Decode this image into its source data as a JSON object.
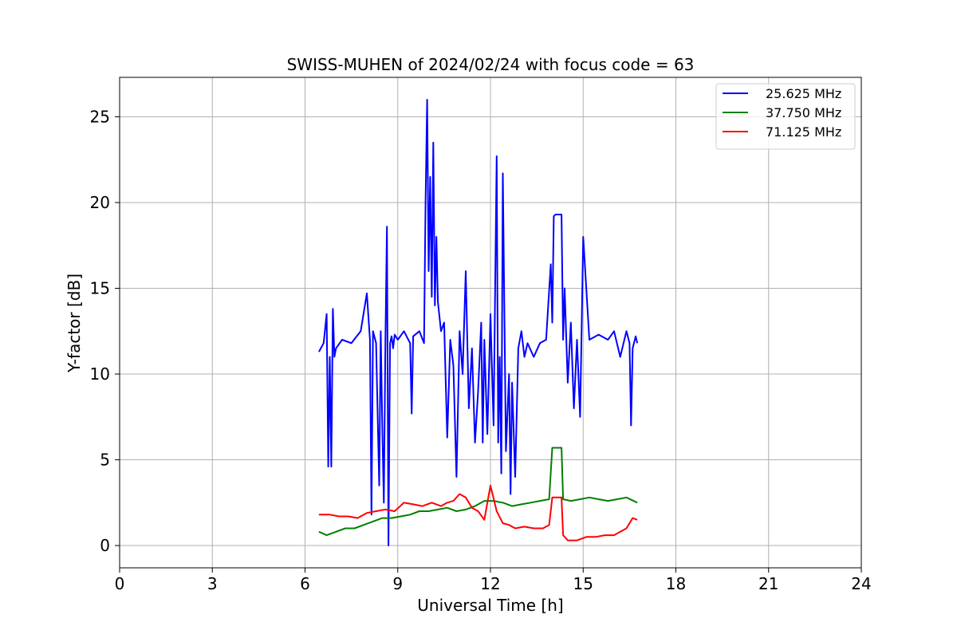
{
  "chart_data": {
    "type": "line",
    "title": "SWISS-MUHEN of 2024/02/24 with focus code = 63",
    "xlabel": "Universal Time [h]",
    "ylabel": "Y-factor [dB]",
    "xlim": [
      0,
      24
    ],
    "ylim": [
      -1.3,
      27.3
    ],
    "xticks": [
      0,
      3,
      6,
      9,
      12,
      15,
      18,
      21,
      24
    ],
    "yticks": [
      0,
      5,
      10,
      15,
      20,
      25
    ],
    "grid": true,
    "legend_position": "top-right",
    "series": [
      {
        "name": "25.625 MHz",
        "color": "#0000ff",
        "x": [
          6.45,
          6.6,
          6.7,
          6.75,
          6.8,
          6.85,
          6.9,
          6.95,
          7.0,
          7.2,
          7.5,
          7.8,
          8.0,
          8.1,
          8.15,
          8.2,
          8.3,
          8.4,
          8.45,
          8.5,
          8.55,
          8.6,
          8.65,
          8.7,
          8.75,
          8.8,
          8.85,
          8.9,
          9.0,
          9.2,
          9.4,
          9.45,
          9.5,
          9.7,
          9.85,
          9.9,
          9.95,
          10.0,
          10.05,
          10.1,
          10.15,
          10.2,
          10.25,
          10.3,
          10.4,
          10.5,
          10.6,
          10.7,
          10.8,
          10.9,
          11.0,
          11.1,
          11.2,
          11.3,
          11.4,
          11.5,
          11.6,
          11.7,
          11.75,
          11.8,
          11.9,
          12.0,
          12.1,
          12.2,
          12.25,
          12.3,
          12.35,
          12.4,
          12.5,
          12.6,
          12.65,
          12.7,
          12.8,
          12.9,
          13.0,
          13.1,
          13.2,
          13.4,
          13.6,
          13.8,
          13.95,
          14.0,
          14.05,
          14.1,
          14.2,
          14.3,
          14.35,
          14.4,
          14.5,
          14.6,
          14.7,
          14.8,
          14.9,
          15.0,
          15.2,
          15.5,
          15.8,
          16.0,
          16.2,
          16.4,
          16.5,
          16.55,
          16.6,
          16.7,
          16.75
        ],
        "values": [
          11.3,
          11.8,
          13.5,
          4.6,
          11.0,
          4.6,
          13.8,
          11.0,
          11.5,
          12.0,
          11.8,
          12.5,
          14.7,
          12.0,
          1.8,
          12.5,
          11.8,
          3.5,
          12.5,
          6.8,
          2.5,
          12.0,
          18.6,
          0.0,
          11.8,
          12.2,
          11.5,
          12.3,
          12.0,
          12.5,
          11.8,
          7.7,
          12.2,
          12.5,
          11.8,
          20.0,
          26.0,
          16.0,
          21.5,
          14.5,
          23.5,
          14.0,
          18.0,
          14.2,
          12.5,
          13.0,
          6.3,
          12.0,
          10.5,
          4.0,
          12.5,
          10.0,
          16.0,
          8.0,
          11.5,
          6.0,
          9.0,
          13.0,
          6.0,
          12.0,
          6.5,
          13.5,
          7.0,
          22.7,
          6.0,
          11.0,
          4.2,
          21.7,
          5.5,
          10.0,
          3.0,
          9.5,
          4.0,
          11.5,
          12.5,
          11.0,
          11.8,
          11.0,
          11.8,
          12.0,
          16.4,
          13.0,
          19.2,
          19.3,
          19.3,
          19.3,
          12.0,
          15.0,
          9.5,
          13.0,
          8.0,
          12.0,
          7.5,
          18.0,
          12.0,
          12.3,
          12.0,
          12.5,
          11.0,
          12.5,
          11.8,
          7.0,
          11.5,
          12.2,
          11.8
        ]
      },
      {
        "name": "37.750 MHz",
        "color": "#008000",
        "x": [
          6.45,
          6.7,
          7.0,
          7.3,
          7.6,
          7.9,
          8.2,
          8.5,
          8.8,
          9.1,
          9.4,
          9.7,
          10.0,
          10.3,
          10.6,
          10.9,
          11.2,
          11.5,
          11.8,
          12.1,
          12.4,
          12.7,
          13.0,
          13.3,
          13.6,
          13.9,
          14.0,
          14.05,
          14.3,
          14.35,
          14.6,
          14.9,
          15.2,
          15.5,
          15.8,
          16.1,
          16.4,
          16.75
        ],
        "values": [
          0.8,
          0.6,
          0.8,
          1.0,
          1.0,
          1.2,
          1.4,
          1.6,
          1.6,
          1.7,
          1.8,
          2.0,
          2.0,
          2.1,
          2.2,
          2.0,
          2.1,
          2.3,
          2.6,
          2.6,
          2.5,
          2.3,
          2.4,
          2.5,
          2.6,
          2.7,
          5.7,
          5.7,
          5.7,
          2.7,
          2.6,
          2.7,
          2.8,
          2.7,
          2.6,
          2.7,
          2.8,
          2.5
        ]
      },
      {
        "name": "71.125 MHz",
        "color": "#ff0000",
        "x": [
          6.45,
          6.8,
          7.1,
          7.4,
          7.7,
          8.0,
          8.3,
          8.6,
          8.9,
          9.2,
          9.5,
          9.8,
          10.1,
          10.4,
          10.6,
          10.8,
          11.0,
          11.2,
          11.4,
          11.6,
          11.8,
          12.0,
          12.2,
          12.4,
          12.6,
          12.8,
          13.1,
          13.4,
          13.7,
          13.9,
          14.0,
          14.05,
          14.3,
          14.35,
          14.5,
          14.8,
          15.1,
          15.4,
          15.7,
          16.0,
          16.2,
          16.4,
          16.6,
          16.75
        ],
        "values": [
          1.8,
          1.8,
          1.7,
          1.7,
          1.6,
          1.9,
          2.0,
          2.1,
          2.0,
          2.5,
          2.4,
          2.3,
          2.5,
          2.3,
          2.5,
          2.6,
          3.0,
          2.8,
          2.2,
          2.0,
          1.5,
          3.5,
          2.0,
          1.3,
          1.2,
          1.0,
          1.1,
          1.0,
          1.0,
          1.2,
          2.8,
          2.8,
          2.8,
          0.6,
          0.3,
          0.3,
          0.5,
          0.5,
          0.6,
          0.6,
          0.8,
          1.0,
          1.6,
          1.5
        ]
      }
    ]
  }
}
